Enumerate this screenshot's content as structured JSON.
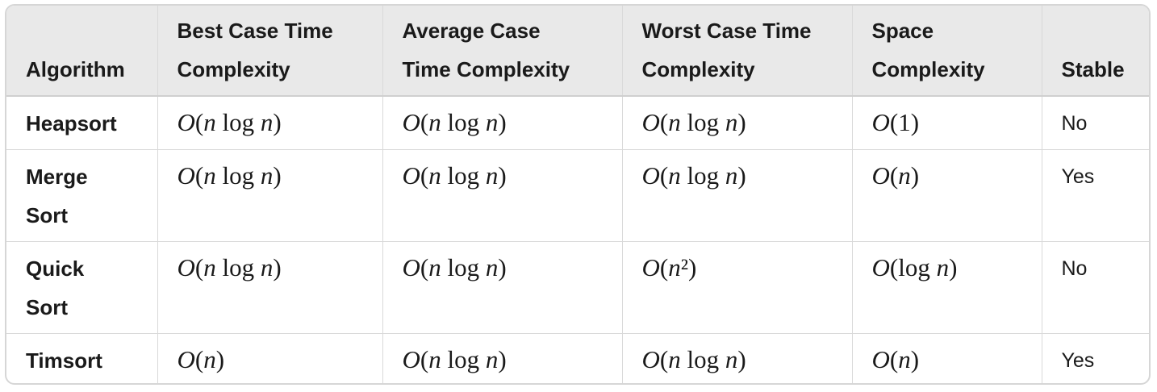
{
  "table": {
    "headers": [
      {
        "line1": "",
        "line2": "Algorithm"
      },
      {
        "line1": "Best Case Time",
        "line2": "Complexity"
      },
      {
        "line1": "Average Case",
        "line2": "Time Complexity"
      },
      {
        "line1": "Worst Case Time",
        "line2": "Complexity"
      },
      {
        "line1": "Space",
        "line2": "Complexity"
      },
      {
        "line1": "",
        "line2": "Stable"
      }
    ],
    "rows": [
      {
        "algorithm_line1": "Heapsort",
        "algorithm_line2": "",
        "best": "O(n log n)",
        "average": "O(n log n)",
        "worst": "O(n log n)",
        "space": "O(1)",
        "stable": "No"
      },
      {
        "algorithm_line1": "Merge",
        "algorithm_line2": "Sort",
        "best": "O(n log n)",
        "average": "O(n log n)",
        "worst": "O(n log n)",
        "space": "O(n)",
        "stable": "Yes"
      },
      {
        "algorithm_line1": "Quick",
        "algorithm_line2": "Sort",
        "best": "O(n log n)",
        "average": "O(n log n)",
        "worst": "O(n²)",
        "space": "O(log n)",
        "stable": "No"
      },
      {
        "algorithm_line1": "Timsort",
        "algorithm_line2": "",
        "best": "O(n)",
        "average": "O(n log n)",
        "worst": "O(n log n)",
        "space": "O(n)",
        "stable": "Yes"
      }
    ]
  }
}
